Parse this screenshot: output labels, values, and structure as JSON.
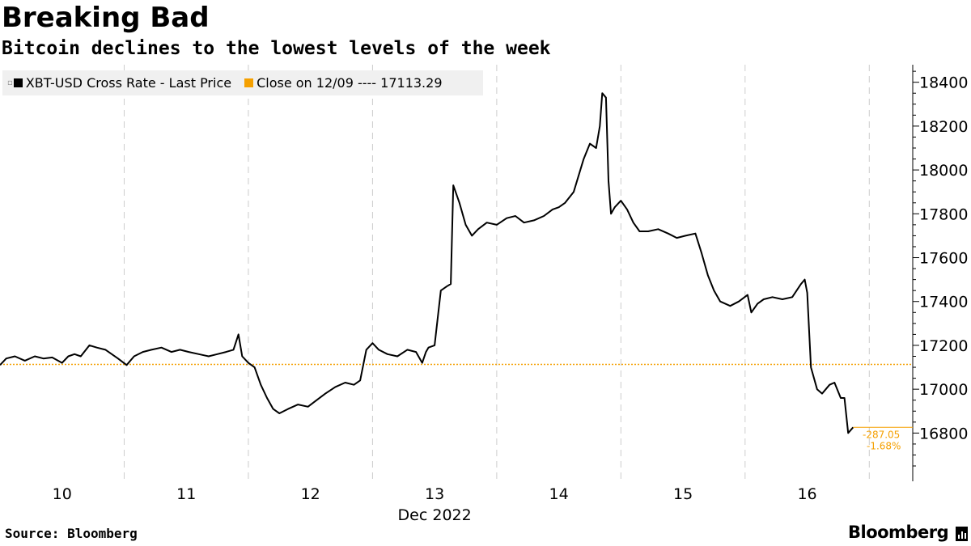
{
  "header": {
    "title": "Breaking Bad",
    "subtitle": "Bitcoin declines to the lowest levels of the week"
  },
  "legend": {
    "series_label": "XBT-USD Cross Rate - Last Price",
    "reference_label": "Close on 12/09 ---- 17113.29"
  },
  "footer": {
    "source": "Source: Bloomberg",
    "brand": "Bloomberg"
  },
  "colors": {
    "series": "#000000",
    "reference": "#f5a000",
    "grid": "#cccccc",
    "change_text": "#f5a000"
  },
  "annotations": {
    "change_abs": "-287.05",
    "change_pct": "-1.68%"
  },
  "chart_data": {
    "type": "line",
    "title": "Breaking Bad",
    "subtitle": "Bitcoin declines to the lowest levels of the week",
    "xlabel": "Dec 2022",
    "ylabel": "",
    "x_tick_labels": [
      "10",
      "11",
      "12",
      "13",
      "14",
      "15",
      "16"
    ],
    "y_ticks": [
      16800,
      17000,
      17200,
      17400,
      17600,
      17800,
      18000,
      18200,
      18400
    ],
    "ylim": [
      16580,
      18480
    ],
    "xlim": [
      9.5,
      16.85
    ],
    "grid": "vertical dashed",
    "legend_position": "top-left",
    "reference_line": {
      "name": "Close on 12/09",
      "value": 17113.29
    },
    "last_value": 16826.24,
    "series": [
      {
        "name": "XBT-USD Cross Rate - Last Price",
        "x": [
          9.5,
          9.55,
          9.62,
          9.7,
          9.78,
          9.85,
          9.92,
          10.0,
          10.05,
          10.1,
          10.15,
          10.22,
          10.28,
          10.35,
          10.45,
          10.52,
          10.58,
          10.65,
          10.72,
          10.8,
          10.88,
          10.95,
          11.02,
          11.1,
          11.18,
          11.25,
          11.32,
          11.38,
          11.42,
          11.45,
          11.5,
          11.55,
          11.6,
          11.65,
          11.7,
          11.75,
          11.82,
          11.9,
          11.98,
          12.05,
          12.12,
          12.2,
          12.28,
          12.35,
          12.4,
          12.45,
          12.5,
          12.55,
          12.62,
          12.7,
          12.78,
          12.85,
          12.9,
          12.93,
          12.95,
          13.0,
          13.05,
          13.1,
          13.13,
          13.15,
          13.2,
          13.25,
          13.3,
          13.35,
          13.42,
          13.5,
          13.58,
          13.65,
          13.72,
          13.8,
          13.88,
          13.95,
          14.0,
          14.05,
          14.12,
          14.2,
          14.25,
          14.3,
          14.33,
          14.35,
          14.38,
          14.4,
          14.42,
          14.45,
          14.5,
          14.55,
          14.6,
          14.65,
          14.72,
          14.8,
          14.88,
          14.95,
          15.02,
          15.1,
          15.15,
          15.2,
          15.25,
          15.3,
          15.38,
          15.45,
          15.52,
          15.55,
          15.6,
          15.65,
          15.72,
          15.8,
          15.88,
          15.95,
          15.98,
          16.0,
          16.03,
          16.08,
          16.12,
          16.18,
          16.22,
          16.27,
          16.3,
          16.33,
          16.37
        ],
        "y": [
          17110,
          17140,
          17150,
          17130,
          17150,
          17140,
          17145,
          17120,
          17150,
          17160,
          17150,
          17200,
          17190,
          17180,
          17140,
          17110,
          17150,
          17170,
          17180,
          17190,
          17170,
          17180,
          17170,
          17160,
          17150,
          17160,
          17170,
          17180,
          17250,
          17150,
          17120,
          17100,
          17020,
          16960,
          16910,
          16890,
          16910,
          16930,
          16920,
          16950,
          16980,
          17010,
          17030,
          17020,
          17040,
          17180,
          17210,
          17180,
          17160,
          17150,
          17180,
          17170,
          17120,
          17170,
          17190,
          17200,
          17450,
          17470,
          17480,
          17930,
          17850,
          17750,
          17700,
          17730,
          17760,
          17750,
          17780,
          17790,
          17760,
          17770,
          17790,
          17820,
          17830,
          17850,
          17900,
          18050,
          18120,
          18100,
          18200,
          18350,
          18330,
          17950,
          17800,
          17830,
          17860,
          17820,
          17760,
          17720,
          17720,
          17730,
          17710,
          17690,
          17700,
          17710,
          17620,
          17520,
          17450,
          17400,
          17380,
          17400,
          17430,
          17350,
          17390,
          17410,
          17420,
          17410,
          17420,
          17480,
          17500,
          17440,
          17100,
          17000,
          16980,
          17020,
          17030,
          16960,
          16960,
          16800,
          16826.24
        ]
      }
    ]
  }
}
